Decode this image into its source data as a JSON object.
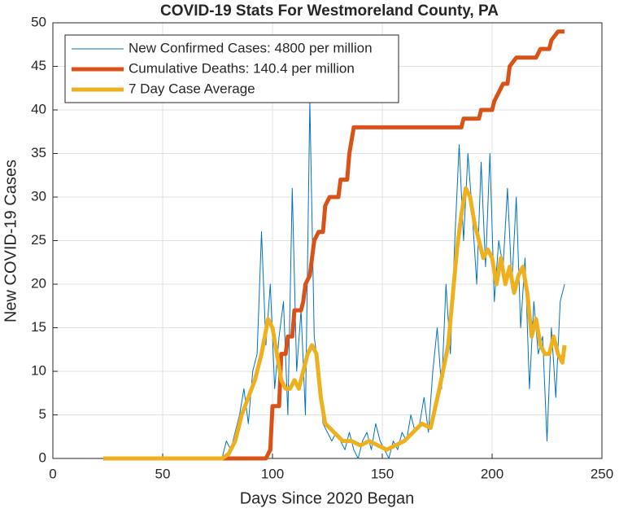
{
  "chart_data": {
    "type": "line",
    "title": "COVID-19 Stats For Westmoreland County, PA",
    "xlabel": "Days Since 2020 Began",
    "ylabel": "New COVID-19 Cases",
    "xlim": [
      0,
      250
    ],
    "xticks": [
      0,
      50,
      100,
      150,
      200,
      250
    ],
    "ylim": [
      0,
      50
    ],
    "yticks": [
      0,
      5,
      10,
      15,
      20,
      25,
      30,
      35,
      40,
      45,
      50
    ],
    "grid": true,
    "legend": "northwest",
    "series": [
      {
        "name": "New Confirmed Cases: 4800 per million",
        "color": "#0072BD",
        "width": 1,
        "x": [
          77,
          79,
          81,
          83,
          85,
          87,
          89,
          91,
          93,
          95,
          97,
          99,
          101,
          103,
          105,
          107,
          109,
          111,
          113,
          115,
          117,
          119,
          121,
          123,
          125,
          127,
          129,
          131,
          133,
          135,
          137,
          139,
          141,
          143,
          145,
          147,
          149,
          151,
          153,
          155,
          157,
          159,
          161,
          163,
          165,
          167,
          169,
          171,
          173,
          175,
          177,
          179,
          181,
          183,
          185,
          187,
          189,
          191,
          193,
          195,
          197,
          199,
          201,
          203,
          205,
          207,
          209,
          211,
          213,
          215,
          217,
          219,
          221,
          223,
          225,
          227,
          229,
          231,
          233
        ],
        "values": [
          0,
          2,
          1,
          3,
          5,
          8,
          4,
          10,
          12,
          26,
          13,
          20,
          8,
          14,
          18,
          5,
          31,
          10,
          17,
          5,
          41,
          14,
          10,
          4,
          3,
          2,
          3,
          2,
          1,
          3,
          1,
          0,
          2,
          3,
          1,
          4,
          2,
          1,
          0,
          2,
          1,
          3,
          2,
          5,
          3,
          4,
          7,
          3,
          10,
          15,
          8,
          20,
          12,
          25,
          36,
          25,
          35,
          28,
          20,
          34,
          22,
          35,
          18,
          25,
          22,
          31,
          20,
          30,
          15,
          23,
          8,
          18,
          12,
          14,
          2,
          15,
          7,
          18,
          20
        ]
      },
      {
        "name": "Cumulative Deaths: 140.4 per million",
        "color": "#D95319",
        "width": 5,
        "x": [
          23,
          97,
          99,
          100,
          103,
          104,
          106,
          107,
          109,
          110,
          113,
          114,
          115,
          117,
          119,
          121,
          123,
          124,
          126,
          130,
          131,
          134,
          135,
          137,
          186,
          187,
          194,
          195,
          200,
          201,
          205,
          207,
          208,
          211,
          220,
          222,
          226,
          227,
          230,
          233
        ],
        "values": [
          0,
          0,
          1,
          6,
          6,
          12,
          12,
          14,
          14,
          17,
          17,
          18,
          20,
          21,
          25,
          26,
          26,
          29,
          30,
          30,
          32,
          32,
          35,
          38,
          38,
          39,
          39,
          40,
          40,
          41,
          43,
          43,
          45,
          46,
          46,
          47,
          47,
          48,
          49,
          49
        ]
      },
      {
        "name": "7 Day Case Average",
        "color": "#EDB120",
        "width": 5,
        "x": [
          23,
          77,
          80,
          83,
          86,
          89,
          92,
          95,
          98,
          100,
          102,
          104,
          106,
          108,
          110,
          112,
          114,
          116,
          118,
          120,
          122,
          124,
          128,
          132,
          136,
          140,
          144,
          148,
          152,
          156,
          160,
          164,
          168,
          172,
          176,
          180,
          184,
          186,
          188,
          190,
          192,
          194,
          196,
          198,
          200,
          202,
          204,
          206,
          208,
          210,
          212,
          214,
          216,
          218,
          220,
          222,
          224,
          226,
          228,
          230,
          232,
          233
        ],
        "values": [
          0,
          0,
          0.5,
          2,
          5,
          7,
          9,
          12,
          16,
          15,
          12,
          9,
          8,
          8,
          9,
          8,
          10,
          12,
          13,
          12,
          7,
          4,
          3,
          2,
          2,
          1.5,
          2,
          1.5,
          1,
          1.5,
          2,
          3,
          4,
          3.5,
          8,
          13,
          24,
          28,
          31,
          30,
          27,
          25,
          23,
          24,
          23,
          20,
          23,
          20,
          22,
          19,
          21,
          22,
          19,
          14,
          16,
          13,
          12,
          12,
          14,
          12,
          11,
          13
        ]
      }
    ]
  }
}
